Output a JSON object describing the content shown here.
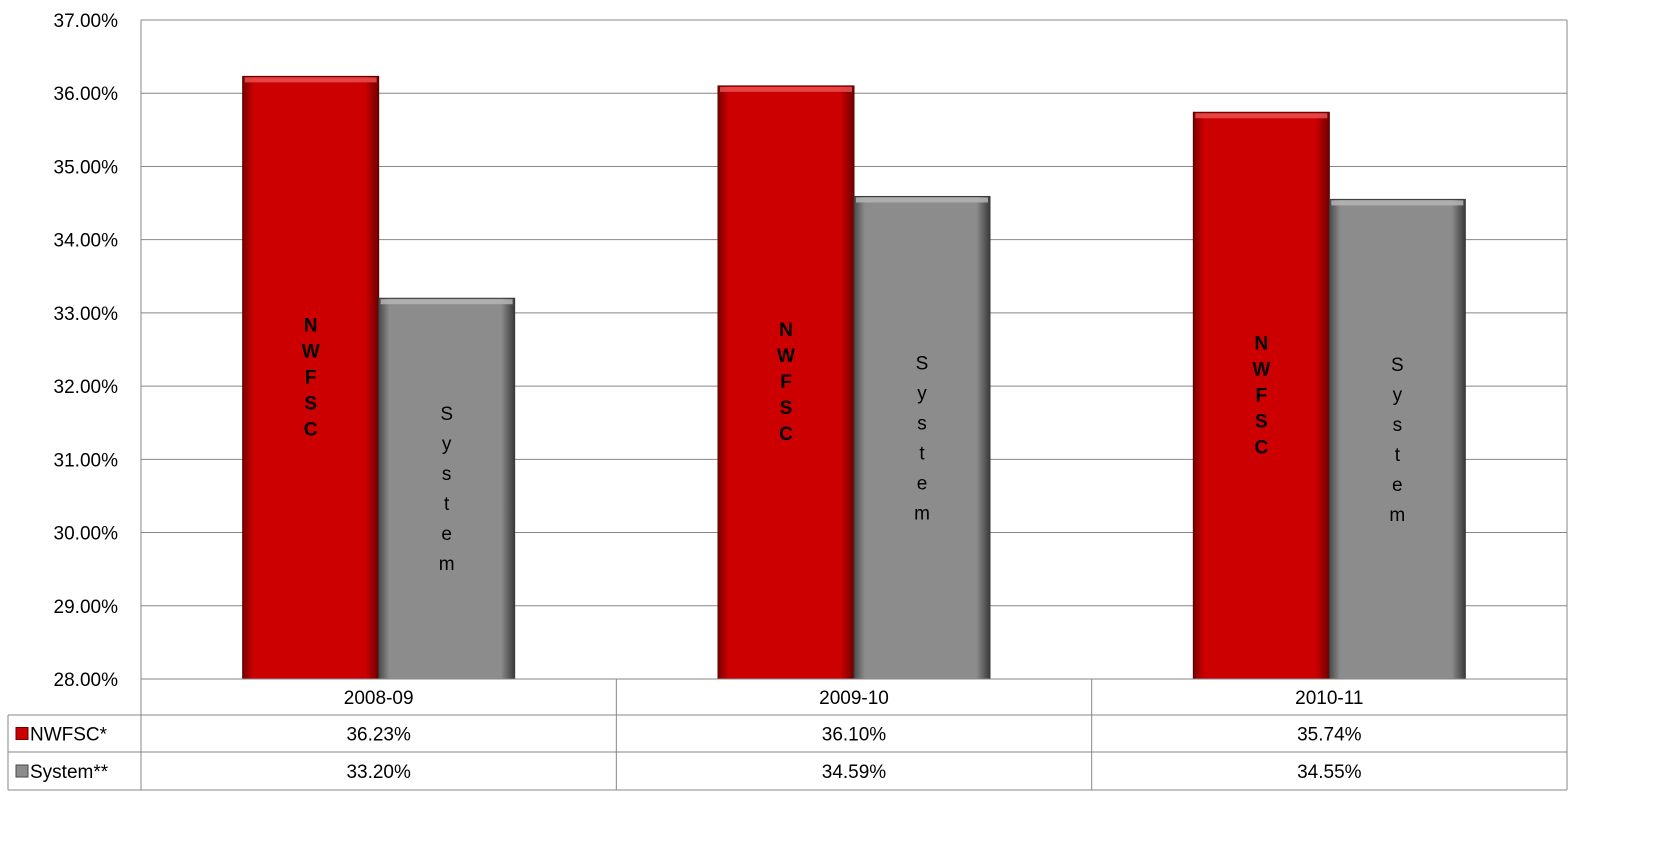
{
  "chart_data": {
    "type": "bar",
    "categories": [
      "2008-09",
      "2009-10",
      "2010-11"
    ],
    "series": [
      {
        "name": "NWFSC*",
        "values": [
          36.23,
          36.1,
          35.74
        ],
        "labels": [
          "36.23%",
          "36.10%",
          "35.74%"
        ],
        "bar_text": "NWFSC",
        "color": "#cc0000"
      },
      {
        "name": "System**",
        "values": [
          33.2,
          34.59,
          34.55
        ],
        "labels": [
          "33.20%",
          "34.59%",
          "34.55%"
        ],
        "bar_text": "System",
        "color": "#8c8c8c"
      }
    ],
    "ylim": [
      28,
      37
    ],
    "yticks": [
      "28.00%",
      "29.00%",
      "30.00%",
      "31.00%",
      "32.00%",
      "33.00%",
      "34.00%",
      "35.00%",
      "36.00%",
      "37.00%"
    ],
    "grid": true,
    "legend": "data-table"
  }
}
